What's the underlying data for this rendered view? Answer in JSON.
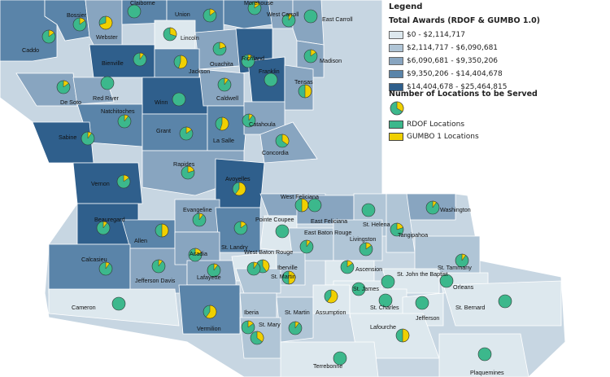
{
  "legend": {
    "title": "Legend",
    "subtitle": "Total Awards (RDOF & GUMBO 1.0)",
    "classes": [
      {
        "label": "$0 - $2,114,717",
        "color": "#dde8ee"
      },
      {
        "label": "$2,114,717 - $6,090,681",
        "color": "#b0c5d6"
      },
      {
        "label": "$6,090,681 - $9,350,206",
        "color": "#88a5c0"
      },
      {
        "label": "$9,350,206 - $14,404,678",
        "color": "#5a84a9"
      },
      {
        "label": "$14,404,678 - $25,464,815",
        "color": "#2f5f8c"
      }
    ],
    "locations_title": "Number of Locations to be Served",
    "rdof_label": "RDOF Locations",
    "rdof_color": "#3cb88c",
    "gumbo_label": "GUMBO 1 Locations",
    "gumbo_color": "#f0d000"
  },
  "parishes": [
    {
      "name": "Caddo",
      "cls": 3,
      "gumbo": 0.15
    },
    {
      "name": "Bossier",
      "cls": 3,
      "gumbo": 0.15
    },
    {
      "name": "Webster",
      "cls": 2,
      "gumbo": 0.7
    },
    {
      "name": "Claiborne",
      "cls": 3,
      "gumbo": 0
    },
    {
      "name": "Union",
      "cls": 3,
      "gumbo": 0.15
    },
    {
      "name": "Morehouse",
      "cls": 3,
      "gumbo": 0.15
    },
    {
      "name": "West Carroll",
      "cls": 2,
      "gumbo": 0.1
    },
    {
      "name": "East Carroll",
      "cls": 2,
      "gumbo": 0
    },
    {
      "name": "Lincoln",
      "cls": 0,
      "gumbo": 0.3
    },
    {
      "name": "Ouachita",
      "cls": 2,
      "gumbo": 0.2
    },
    {
      "name": "Bienville",
      "cls": 4,
      "gumbo": 0.1
    },
    {
      "name": "Jackson",
      "cls": 3,
      "gumbo": 0.55
    },
    {
      "name": "Richland",
      "cls": 4,
      "gumbo": 0.1
    },
    {
      "name": "Madison",
      "cls": 2,
      "gumbo": 0.15
    },
    {
      "name": "Franklin",
      "cls": 4,
      "gumbo": 0
    },
    {
      "name": "Tensas",
      "cls": 2,
      "gumbo": 0.5
    },
    {
      "name": "De Soto",
      "cls": 2,
      "gumbo": 0.15
    },
    {
      "name": "Red River",
      "cls": 2,
      "gumbo": 0
    },
    {
      "name": "Winn",
      "cls": 4,
      "gumbo": 0
    },
    {
      "name": "Caldwell",
      "cls": 2,
      "gumbo": 0.1
    },
    {
      "name": "Natchitoches",
      "cls": 3,
      "gumbo": 0.1
    },
    {
      "name": "Sabine",
      "cls": 4,
      "gumbo": 0.1
    },
    {
      "name": "Grant",
      "cls": 3,
      "gumbo": 0.15
    },
    {
      "name": "La Salle",
      "cls": 3,
      "gumbo": 0.55
    },
    {
      "name": "Catahoula",
      "cls": 2,
      "gumbo": 0.1
    },
    {
      "name": "Concordia",
      "cls": 2,
      "gumbo": 0.35
    },
    {
      "name": "Rapides",
      "cls": 2,
      "gumbo": 0.2
    },
    {
      "name": "Vernon",
      "cls": 4,
      "gumbo": 0.15
    },
    {
      "name": "Avoyelles",
      "cls": 4,
      "gumbo": 0.6
    },
    {
      "name": "Evangeline",
      "cls": 2,
      "gumbo": 0.1
    },
    {
      "name": "West Feliciana",
      "cls": 2,
      "gumbo": 0.5
    },
    {
      "name": "Beauregard",
      "cls": 4,
      "gumbo": 0.1
    },
    {
      "name": "Allen",
      "cls": 3,
      "gumbo": 0.5
    },
    {
      "name": "Pointe Coupee",
      "cls": 0,
      "gumbo": 0
    },
    {
      "name": "East Feliciana",
      "cls": 2,
      "gumbo": 0
    },
    {
      "name": "St. Helena",
      "cls": 1,
      "gumbo": 0
    },
    {
      "name": "Washington",
      "cls": 2,
      "gumbo": 0.1
    },
    {
      "name": "Tangipahoa",
      "cls": 1,
      "gumbo": 0.2
    },
    {
      "name": "St. Landry",
      "cls": 3,
      "gumbo": 0.15
    },
    {
      "name": "East Baton Rouge",
      "cls": 1,
      "gumbo": 0.1
    },
    {
      "name": "Livingston",
      "cls": 1,
      "gumbo": 0.15
    },
    {
      "name": "Calcasieu",
      "cls": 3,
      "gumbo": 0.1
    },
    {
      "name": "Jefferson Davis",
      "cls": 2,
      "gumbo": 0.1
    },
    {
      "name": "Acadia",
      "cls": 2,
      "gumbo": 0.2
    },
    {
      "name": "Lafayette",
      "cls": 2,
      "gumbo": 0.1
    },
    {
      "name": "West Baton Rouge",
      "cls": 0,
      "gumbo": 0.4
    },
    {
      "name": "Iberville",
      "cls": 1,
      "gumbo": 0.5
    },
    {
      "name": "St. Martin",
      "cls": 1,
      "gumbo": 0.1
    },
    {
      "name": "Ascension",
      "cls": 0,
      "gumbo": 0.15
    },
    {
      "name": "St. Tammany",
      "cls": 1,
      "gumbo": 0.1
    },
    {
      "name": "St. John the Baptist",
      "cls": 0,
      "gumbo": 0
    },
    {
      "name": "St. James",
      "cls": 0,
      "gumbo": 0
    },
    {
      "name": "Orleans",
      "cls": 0,
      "gumbo": 0
    },
    {
      "name": "Cameron",
      "cls": 0,
      "gumbo": 0
    },
    {
      "name": "Vermilion",
      "cls": 3,
      "gumbo": 0.6
    },
    {
      "name": "Iberia",
      "cls": 1,
      "gumbo": 0.15
    },
    {
      "name": "St. Martin",
      "cls": 1,
      "gumbo": 0.1
    },
    {
      "name": "Assumption",
      "cls": 0,
      "gumbo": 0.6
    },
    {
      "name": "St. Charles",
      "cls": 0,
      "gumbo": 0
    },
    {
      "name": "Jefferson",
      "cls": 0,
      "gumbo": 0
    },
    {
      "name": "St. Bernard",
      "cls": 0,
      "gumbo": 0
    },
    {
      "name": "St. Mary",
      "cls": 1,
      "gumbo": 0.35
    },
    {
      "name": "Lafourche",
      "cls": 0,
      "gumbo": 0.5
    },
    {
      "name": "Terrebonne",
      "cls": 0,
      "gumbo": 0
    },
    {
      "name": "Plaquemines",
      "cls": 0,
      "gumbo": 0
    }
  ]
}
